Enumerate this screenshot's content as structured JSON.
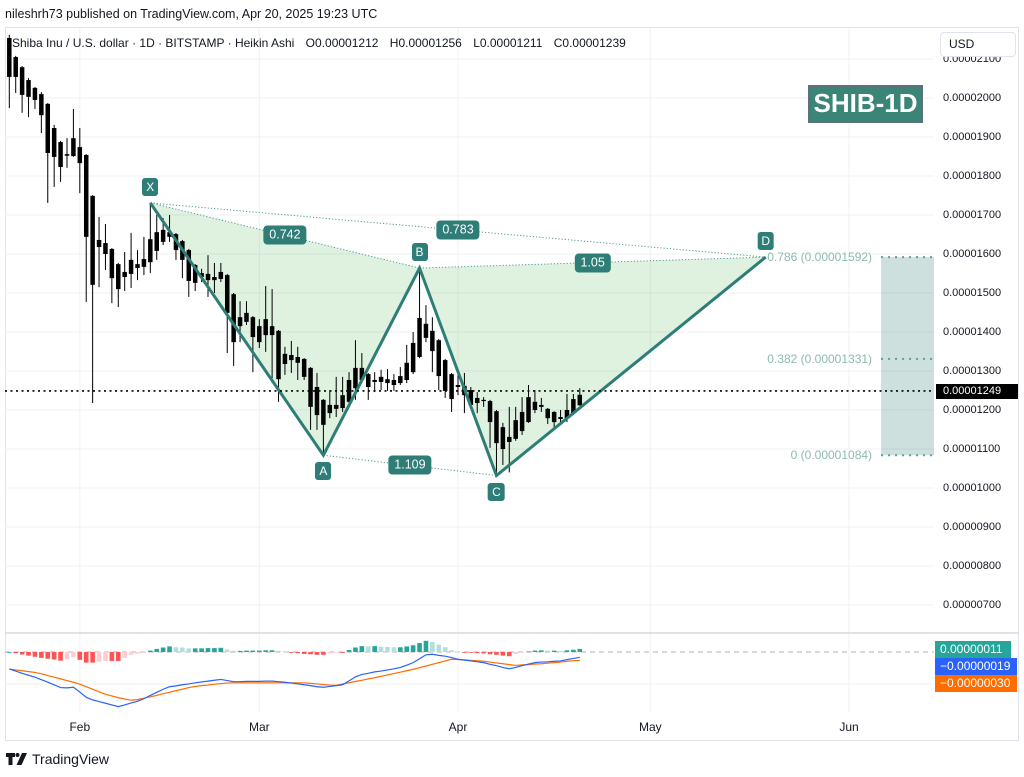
{
  "header": {
    "published": "nileshrh73 published on TradingView.com, Apr 20, 2025 19:23 UTC"
  },
  "legend": {
    "symbol": "Shiba Inu / U.S. dollar · 1D · BITSTAMP · Heikin Ashi",
    "open_label": "O",
    "open": "0.00001212",
    "high_label": "H",
    "high": "0.00001256",
    "low_label": "L",
    "low": "0.00001211",
    "close_label": "C",
    "close": "0.00001239"
  },
  "price_axis": {
    "currency_button": "USD",
    "last_price_label": "0.00001249"
  },
  "badge": {
    "text": "SHIB-1D"
  },
  "macd_labels": {
    "histogram": "0.00000011",
    "macd": "−0.00000019",
    "signal": "−0.00000030"
  },
  "footer": {
    "brand": "TradingView"
  },
  "colors": {
    "pattern": "#2e7d77",
    "badge_bg": "#3a8576",
    "fib_label": "#8cbab2",
    "macd_line": "#2962ff",
    "signal_line": "#ff6d00",
    "hist_up": "#26a69a",
    "hist_up_fading": "#b2dfdb",
    "hist_down": "#ff5252",
    "hist_down_fading": "#ffcdd2",
    "candle": "#000000"
  },
  "chart_data": {
    "type": "candlestick",
    "title": "Shiba Inu / U.S. dollar · 1D · BITSTAMP · Heikin Ashi",
    "xlabel": "",
    "ylabel": "",
    "value_scale": 1e-08,
    "ylim": [
      631,
      2182
    ],
    "grid": true,
    "legend_position": "top-left",
    "x_tick_labels": [
      "Feb",
      "Mar",
      "Apr",
      "May",
      "Jun"
    ],
    "x_tick_index": [
      11,
      39,
      70,
      100,
      131
    ],
    "y_tick_labels": [
      "0.00002100",
      "0.00002000",
      "0.00001900",
      "0.00001800",
      "0.00001700",
      "0.00001600",
      "0.00001500",
      "0.00001400",
      "0.00001300",
      "0.00001200",
      "0.00001100",
      "0.00001000",
      "0.00000900",
      "0.00000800",
      "0.00000700"
    ],
    "series": [
      {
        "name": "SHIB/USD Heikin Ashi 1D",
        "ohlc_order": [
          "o",
          "h",
          "l",
          "c"
        ],
        "ohlc": [
          [
            2154,
            2162,
            1974,
            2054
          ],
          [
            2105,
            2108,
            2013,
            2054
          ],
          [
            2079,
            2082,
            1962,
            2008
          ],
          [
            2046,
            2051,
            1951,
            2003
          ],
          [
            2026,
            2028,
            1972,
            1995
          ],
          [
            2010,
            2015,
            1910,
            1956
          ],
          [
            1985,
            1987,
            1731,
            1859
          ],
          [
            1923,
            1931,
            1772,
            1849
          ],
          [
            1887,
            1890,
            1785,
            1823
          ],
          [
            1852,
            1897,
            1821,
            1856
          ],
          [
            1851,
            1972,
            1849,
            1897
          ],
          [
            1874,
            1923,
            1756,
            1833
          ],
          [
            1854,
            1856,
            1477,
            1644
          ],
          [
            1749,
            1751,
            1218,
            1521
          ],
          [
            1636,
            1695,
            1515,
            1618
          ],
          [
            1628,
            1677,
            1559,
            1600
          ],
          [
            1613,
            1615,
            1474,
            1538
          ],
          [
            1574,
            1577,
            1464,
            1510
          ],
          [
            1541,
            1605,
            1505,
            1554
          ],
          [
            1549,
            1654,
            1513,
            1585
          ],
          [
            1564,
            1610,
            1533,
            1574
          ],
          [
            1567,
            1644,
            1546,
            1587
          ],
          [
            1579,
            1731,
            1551,
            1638
          ],
          [
            1608,
            1700,
            1585,
            1656
          ],
          [
            1631,
            1692,
            1623,
            1662
          ],
          [
            1656,
            1700,
            1631,
            1644
          ],
          [
            1651,
            1654,
            1585,
            1610
          ],
          [
            1633,
            1636,
            1538,
            1585
          ],
          [
            1610,
            1613,
            1490,
            1531
          ],
          [
            1572,
            1574,
            1505,
            1526
          ],
          [
            1551,
            1562,
            1528,
            1541
          ],
          [
            1549,
            1597,
            1490,
            1533
          ],
          [
            1533,
            1577,
            1500,
            1541
          ],
          [
            1536,
            1577,
            1528,
            1554
          ],
          [
            1546,
            1549,
            1346,
            1449
          ],
          [
            1497,
            1500,
            1313,
            1374
          ],
          [
            1415,
            1479,
            1374,
            1438
          ],
          [
            1426,
            1479,
            1418,
            1449
          ],
          [
            1438,
            1441,
            1297,
            1387
          ],
          [
            1415,
            1433,
            1359,
            1374
          ],
          [
            1392,
            1518,
            1349,
            1433
          ],
          [
            1415,
            1510,
            1282,
            1392
          ],
          [
            1403,
            1405,
            1221,
            1279
          ],
          [
            1344,
            1362,
            1290,
            1318
          ],
          [
            1328,
            1377,
            1295,
            1341
          ],
          [
            1336,
            1362,
            1277,
            1321
          ],
          [
            1331,
            1333,
            1277,
            1285
          ],
          [
            1308,
            1310,
            1149,
            1208
          ],
          [
            1259,
            1295,
            1149,
            1187
          ],
          [
            1226,
            1228,
            1084,
            1162
          ],
          [
            1192,
            1251,
            1179,
            1213
          ],
          [
            1203,
            1285,
            1182,
            1213
          ],
          [
            1205,
            1285,
            1195,
            1238
          ],
          [
            1221,
            1297,
            1213,
            1277
          ],
          [
            1256,
            1379,
            1226,
            1308
          ],
          [
            1308,
            1346,
            1272,
            1277
          ],
          [
            1292,
            1295,
            1226,
            1259
          ],
          [
            1272,
            1297,
            1246,
            1277
          ],
          [
            1272,
            1303,
            1251,
            1285
          ],
          [
            1279,
            1305,
            1249,
            1269
          ],
          [
            1264,
            1292,
            1249,
            1277
          ],
          [
            1269,
            1310,
            1264,
            1287
          ],
          [
            1277,
            1367,
            1269,
            1321
          ],
          [
            1297,
            1400,
            1292,
            1372
          ],
          [
            1336,
            1564,
            1333,
            1436
          ],
          [
            1421,
            1469,
            1374,
            1385
          ],
          [
            1403,
            1438,
            1297,
            1351
          ],
          [
            1379,
            1382,
            1251,
            1287
          ],
          [
            1328,
            1331,
            1231,
            1249
          ],
          [
            1292,
            1295,
            1195,
            1228
          ],
          [
            1264,
            1297,
            1238,
            1259
          ],
          [
            1262,
            1295,
            1192,
            1238
          ],
          [
            1251,
            1259,
            1205,
            1213
          ],
          [
            1218,
            1246,
            1192,
            1231
          ],
          [
            1226,
            1233,
            1208,
            1223
          ],
          [
            1223,
            1226,
            1103,
            1169
          ],
          [
            1197,
            1200,
            1032,
            1115
          ],
          [
            1156,
            1167,
            1059,
            1100
          ],
          [
            1118,
            1208,
            1040,
            1131
          ],
          [
            1126,
            1208,
            1121,
            1174
          ],
          [
            1146,
            1233,
            1136,
            1195
          ],
          [
            1169,
            1264,
            1167,
            1233
          ],
          [
            1221,
            1251,
            1192,
            1200
          ],
          [
            1208,
            1231,
            1195,
            1213
          ],
          [
            1203,
            1205,
            1164,
            1179
          ],
          [
            1195,
            1197,
            1149,
            1169
          ],
          [
            1177,
            1200,
            1162,
            1182
          ],
          [
            1179,
            1241,
            1169,
            1200
          ],
          [
            1192,
            1241,
            1187,
            1228
          ],
          [
            1212,
            1256,
            1211,
            1239
          ]
        ]
      }
    ],
    "indicators": {
      "macd": {
        "macd": [
          -61,
          -68,
          -76,
          -83,
          -90,
          -99,
          -108,
          -117,
          -127,
          -128,
          -126,
          -143,
          -162,
          -171,
          -177,
          -183,
          -189,
          -195,
          -189,
          -182,
          -176,
          -167,
          -155,
          -144,
          -133,
          -124,
          -121,
          -117,
          -114,
          -110,
          -107,
          -104,
          -101,
          -98,
          -102,
          -106,
          -106,
          -105,
          -105,
          -105,
          -104,
          -104,
          -106,
          -108,
          -111,
          -114,
          -117,
          -120,
          -124,
          -126,
          -123,
          -120,
          -117,
          -103,
          -89,
          -80,
          -76,
          -71,
          -68,
          -64,
          -60,
          -55,
          -47,
          -38,
          -24,
          -10,
          -8,
          -12,
          -15,
          -20,
          -26,
          -29,
          -32,
          -35,
          -38,
          -44,
          -49,
          -55,
          -60,
          -55,
          -49,
          -43,
          -38,
          -36,
          -35,
          -33,
          -32,
          -27,
          -23,
          -19
        ],
        "signal": [
          -61,
          -64,
          -67,
          -70,
          -73,
          -78,
          -84,
          -90,
          -96,
          -102,
          -108,
          -115,
          -124,
          -133,
          -142,
          -151,
          -157,
          -163,
          -168,
          -172,
          -170,
          -165,
          -160,
          -155,
          -149,
          -144,
          -138,
          -133,
          -127,
          -123,
          -120,
          -118,
          -115,
          -113,
          -111,
          -110,
          -110,
          -110,
          -110,
          -110,
          -110,
          -110,
          -110,
          -110,
          -110,
          -110,
          -110,
          -112,
          -114,
          -116,
          -118,
          -119,
          -114,
          -110,
          -105,
          -101,
          -96,
          -92,
          -87,
          -82,
          -77,
          -72,
          -67,
          -62,
          -56,
          -50,
          -44,
          -38,
          -32,
          -26,
          -27,
          -28,
          -30,
          -31,
          -33,
          -36,
          -39,
          -42,
          -45,
          -48,
          -46,
          -45,
          -43,
          -42,
          -40,
          -38,
          -36,
          -33,
          -31,
          -30
        ],
        "histogram": [
          0,
          -4,
          -9,
          -13,
          -17,
          -21,
          -24,
          -27,
          -31,
          -26,
          -18,
          -28,
          -38,
          -38,
          -35,
          -32,
          -32,
          -32,
          -21,
          -10,
          -6,
          -2,
          5,
          11,
          16,
          20,
          17,
          16,
          13,
          13,
          13,
          14,
          14,
          15,
          9,
          4,
          4,
          5,
          5,
          5,
          6,
          6,
          4,
          2,
          -1,
          -4,
          -7,
          -8,
          -10,
          -10,
          -5,
          -1,
          -3,
          7,
          16,
          21,
          20,
          21,
          19,
          18,
          17,
          17,
          20,
          24,
          32,
          40,
          36,
          26,
          17,
          6,
          1,
          -1,
          -2,
          -4,
          -5,
          -8,
          -10,
          -13,
          -15,
          -7,
          -3,
          2,
          5,
          6,
          5,
          5,
          4,
          6,
          8,
          11
        ]
      }
    },
    "annotations": {
      "last_price": 1249,
      "harmonic_pattern": {
        "points": [
          {
            "label": "X",
            "index": 22,
            "value": 1731,
            "placement": "above"
          },
          {
            "label": "A",
            "index": 49,
            "value": 1084,
            "placement": "below"
          },
          {
            "label": "B",
            "index": 64,
            "value": 1564,
            "placement": "above"
          },
          {
            "label": "C",
            "index": 76,
            "value": 1032,
            "placement": "below"
          },
          {
            "label": "D",
            "index": 118,
            "value": 1592,
            "placement": "above"
          }
        ],
        "ratios": [
          {
            "text": "0.742",
            "from": "X",
            "to": "B"
          },
          {
            "text": "0.783",
            "from": "X",
            "to": "D"
          },
          {
            "text": "1.05",
            "from": "B",
            "to": "D"
          },
          {
            "text": "1.109",
            "from": "A",
            "to": "C"
          }
        ]
      },
      "fib_retracement": {
        "start_index": 136,
        "levels": [
          {
            "label": "0.786 (0.00001592)",
            "ratio": 0.786,
            "value": 1592
          },
          {
            "label": "0.382 (0.00001331)",
            "ratio": 0.382,
            "value": 1331
          },
          {
            "label": "0 (0.00001084)",
            "ratio": 0,
            "value": 1084
          }
        ]
      }
    }
  }
}
